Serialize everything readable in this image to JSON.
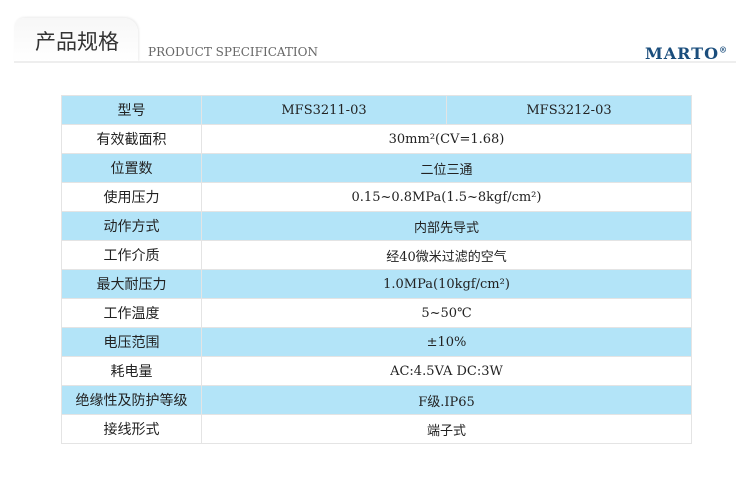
{
  "header": {
    "title": "产品规格",
    "subtitle": "PRODUCT SPECIFICATION",
    "brand": "MARTO",
    "brand_mark": "®"
  },
  "table": {
    "header": {
      "label": "型号",
      "models": [
        "MFS3211-03",
        "MFS3212-03"
      ]
    },
    "rows": [
      {
        "label": "有效截面积",
        "value": "30mm²(CV=1.68)"
      },
      {
        "label": "位置数",
        "value": "二位三通"
      },
      {
        "label": "使用压力",
        "value": "0.15~0.8MPa(1.5~8kgf/cm²)"
      },
      {
        "label": "动作方式",
        "value": "内部先导式"
      },
      {
        "label": "工作介质",
        "value": "经40微米过滤的空气"
      },
      {
        "label": "最大耐压力",
        "value": "1.0MPa(10kgf/cm²)"
      },
      {
        "label": "工作温度",
        "value": "5~50℃"
      },
      {
        "label": "电压范围",
        "value": "±10%"
      },
      {
        "label": "耗电量",
        "value": "AC:4.5VA  DC:3W"
      },
      {
        "label": "绝缘性及防护等级",
        "value": "F级.IP65"
      },
      {
        "label": "接线形式",
        "value": "端子式"
      }
    ]
  },
  "colors": {
    "row_highlight": "#b3e4f8",
    "brand": "#1a4d7c"
  }
}
